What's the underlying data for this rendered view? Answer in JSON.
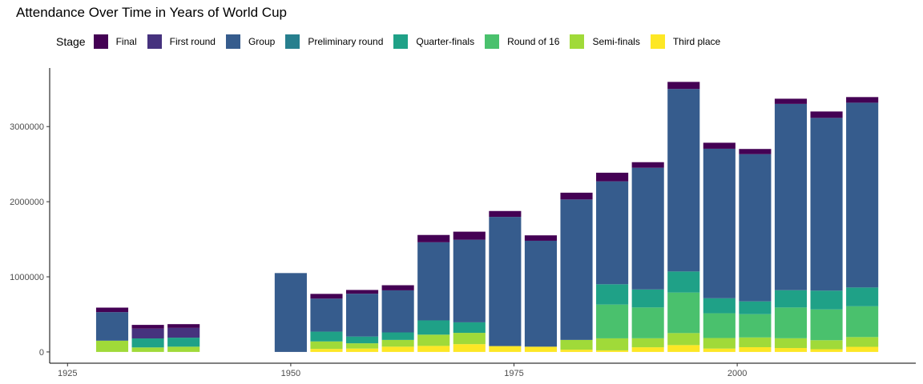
{
  "chart_data": {
    "type": "bar",
    "stacked": true,
    "title": "Attendance Over Time in Years of World Cup",
    "xlabel": "",
    "ylabel": "",
    "legend_title": "Stage",
    "legend_position": "top",
    "grid": false,
    "xlim": [
      1923,
      2020
    ],
    "ylim": [
      -150000,
      3780000
    ],
    "x_ticks": [
      1925,
      1950,
      1975,
      2000
    ],
    "y_ticks": [
      0,
      1000000,
      2000000,
      3000000
    ],
    "x": [
      1930,
      1934,
      1938,
      1950,
      1954,
      1958,
      1962,
      1966,
      1970,
      1974,
      1978,
      1982,
      1986,
      1990,
      1994,
      1998,
      2002,
      2006,
      2010,
      2014
    ],
    "series": [
      {
        "name": "Third place",
        "color": "#FDE725",
        "values": [
          0,
          0,
          0,
          0,
          40000,
          45000,
          70000,
          80000,
          104000,
          78000,
          70000,
          30000,
          21000,
          62000,
          91000,
          45000,
          63000,
          52000,
          36000,
          68000
        ]
      },
      {
        "name": "Semi-finals",
        "color": "#A0DA39",
        "values": [
          150000,
          60000,
          70000,
          0,
          100000,
          70000,
          90000,
          150000,
          150000,
          0,
          0,
          130000,
          160000,
          120000,
          160000,
          140000,
          130000,
          130000,
          120000,
          130000
        ]
      },
      {
        "name": "Round of 16",
        "color": "#4AC16D",
        "values": [
          0,
          0,
          0,
          0,
          0,
          0,
          0,
          0,
          0,
          0,
          0,
          0,
          450000,
          410000,
          540000,
          330000,
          310000,
          410000,
          410000,
          410000
        ]
      },
      {
        "name": "Quarter-finals",
        "color": "#1FA187",
        "values": [
          0,
          120000,
          120000,
          0,
          130000,
          90000,
          100000,
          190000,
          140000,
          0,
          0,
          0,
          270000,
          240000,
          280000,
          200000,
          170000,
          230000,
          250000,
          250000
        ]
      },
      {
        "name": "Preliminary round",
        "color": "#277F8E",
        "values": [
          0,
          0,
          0,
          0,
          0,
          0,
          0,
          0,
          0,
          0,
          0,
          0,
          0,
          0,
          0,
          0,
          0,
          0,
          0,
          0
        ]
      },
      {
        "name": "Group",
        "color": "#365C8D",
        "values": [
          380000,
          0,
          0,
          1050000,
          440000,
          570000,
          560000,
          1040000,
          1100000,
          1720000,
          1410000,
          1870000,
          1370000,
          1620000,
          2430000,
          1990000,
          1960000,
          2480000,
          2300000,
          2460000
        ]
      },
      {
        "name": "First round",
        "color": "#46327E",
        "values": [
          0,
          130000,
          130000,
          0,
          0,
          0,
          0,
          0,
          0,
          0,
          0,
          0,
          0,
          0,
          0,
          0,
          0,
          0,
          0,
          0
        ]
      },
      {
        "name": "Final",
        "color": "#440154",
        "values": [
          60000,
          50000,
          50000,
          0,
          63000,
          50000,
          68000,
          97000,
          107000,
          78000,
          72000,
          90000,
          115000,
          74000,
          94000,
          80000,
          69000,
          69000,
          85000,
          75000
        ]
      }
    ]
  },
  "legend_order": [
    "Final",
    "First round",
    "Group",
    "Preliminary round",
    "Quarter-finals",
    "Round of 16",
    "Semi-finals",
    "Third place"
  ]
}
